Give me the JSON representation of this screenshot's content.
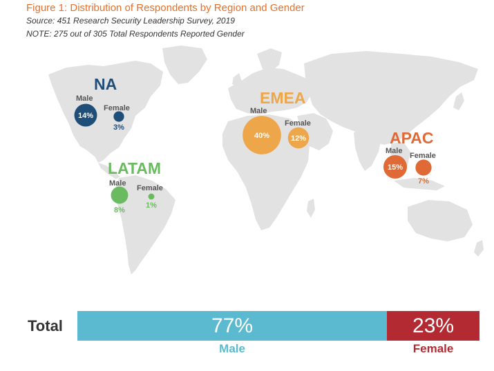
{
  "header": {
    "title": "Figure 1: Distribution of Respondents by Region and Gender",
    "source": "Source: 451 Research Security Leadership Survey, 2019",
    "note": "NOTE: 275 out of 305 Total Respondents Reported Gender"
  },
  "colors": {
    "na": "#1f4e79",
    "latam": "#6aba60",
    "emea": "#eea64a",
    "apac": "#e06a35",
    "male_bar": "#5bbad0",
    "female_bar": "#b42a32",
    "map": "#e2e2e2"
  },
  "chart_data": {
    "type": "bubble-map",
    "title": "Figure 1: Distribution of Respondents by Region and Gender",
    "regions": [
      {
        "key": "na",
        "name": "NA",
        "male": 14,
        "female": 3,
        "male_label": "Male",
        "female_label": "Female",
        "male_text": "14%",
        "female_text": "3%"
      },
      {
        "key": "latam",
        "name": "LATAM",
        "male": 8,
        "female": 1,
        "male_label": "Male",
        "female_label": "Female",
        "male_text": "8%",
        "female_text": "1%"
      },
      {
        "key": "emea",
        "name": "EMEA",
        "male": 40,
        "female": 12,
        "male_label": "Male",
        "female_label": "Female",
        "male_text": "40%",
        "female_text": "12%"
      },
      {
        "key": "apac",
        "name": "APAC",
        "male": 15,
        "female": 7,
        "male_label": "Male",
        "female_label": "Female",
        "male_text": "15%",
        "female_text": "7%"
      }
    ],
    "total": {
      "label": "Total",
      "male": 77,
      "female": 23,
      "male_text": "77%",
      "female_text": "23%",
      "male_label": "Male",
      "female_label": "Female"
    }
  }
}
